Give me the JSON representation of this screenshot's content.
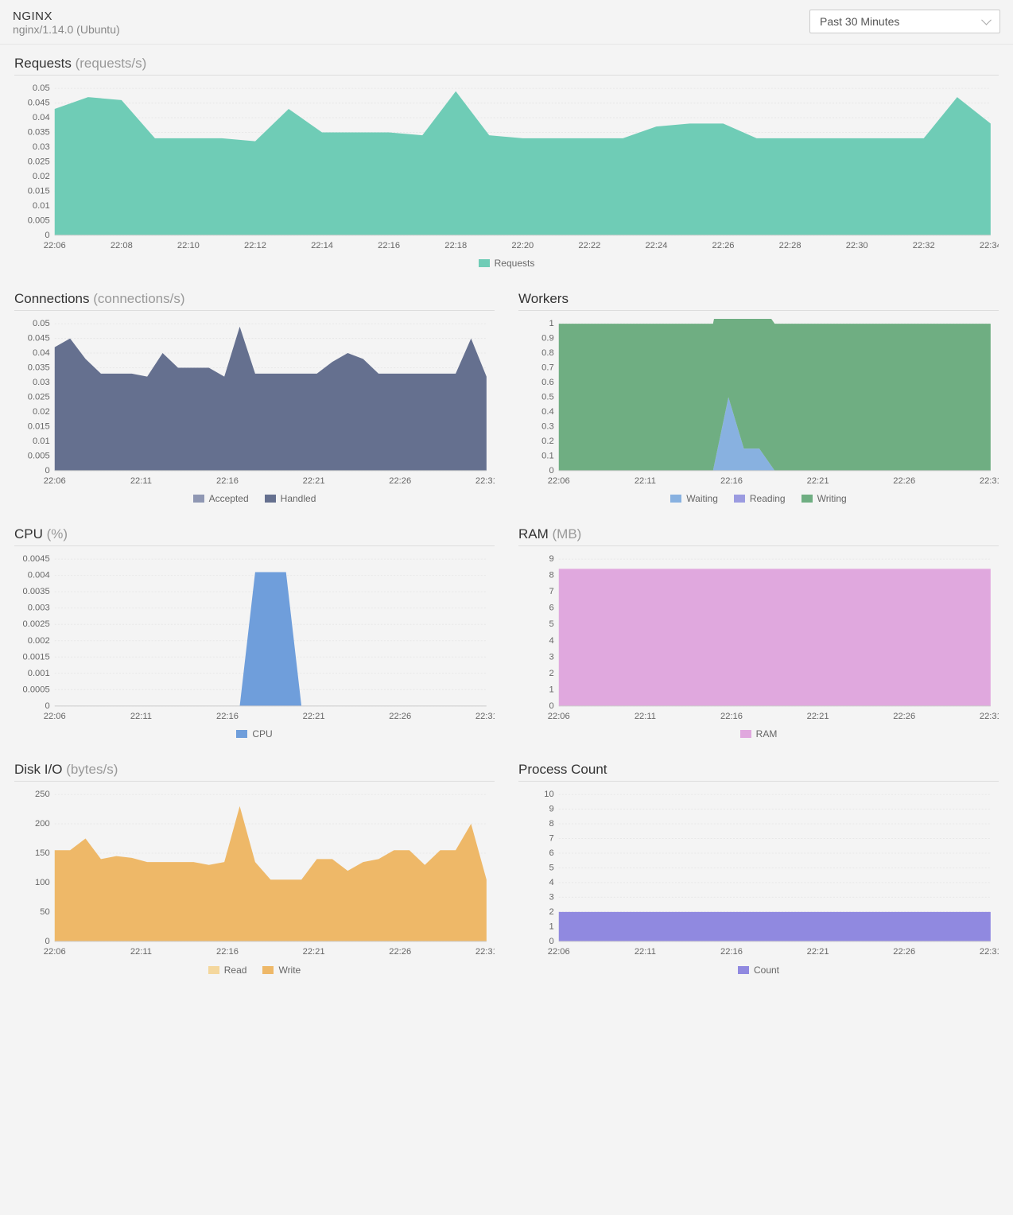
{
  "header": {
    "title": "NGINX",
    "subtitle": "nginx/1.14.0 (Ubuntu)",
    "time_range": "Past 30 Minutes"
  },
  "colors": {
    "requests_fill": "#6fccb6",
    "accepted_fill": "#8f97b3",
    "handled_fill": "#65708f",
    "waiting_fill": "#88b1e0",
    "reading_fill": "#9b9be0",
    "writing_fill": "#6fae82",
    "cpu_fill": "#6f9edb",
    "ram_fill": "#e0a8de",
    "read_fill": "#f4d79d",
    "write_fill": "#eeb868",
    "count_fill": "#9089e0",
    "grid": "#e8e8e8",
    "axis": "#cccccc",
    "text": "#666666"
  },
  "requests_chart": {
    "title": "Requests",
    "unit": "(requests/s)",
    "type": "area",
    "ylim": [
      0,
      0.05
    ],
    "ytick_step": 0.005,
    "xlabels": [
      "22:06",
      "22:08",
      "22:10",
      "22:12",
      "22:14",
      "22:16",
      "22:18",
      "22:20",
      "22:22",
      "22:24",
      "22:26",
      "22:28",
      "22:30",
      "22:32",
      "22:34"
    ],
    "series": [
      {
        "name": "Requests",
        "color_key": "requests_fill",
        "values": [
          0.043,
          0.047,
          0.046,
          0.033,
          0.033,
          0.033,
          0.032,
          0.043,
          0.035,
          0.035,
          0.035,
          0.034,
          0.049,
          0.034,
          0.033,
          0.033,
          0.033,
          0.033,
          0.037,
          0.038,
          0.038,
          0.033,
          0.033,
          0.033,
          0.033,
          0.033,
          0.033,
          0.047,
          0.038
        ]
      }
    ],
    "legend": [
      "Requests"
    ]
  },
  "connections_chart": {
    "title": "Connections",
    "unit": "(connections/s)",
    "type": "area-stacked",
    "ylim": [
      0,
      0.05
    ],
    "ytick_step": 0.005,
    "xlabels": [
      "22:06",
      "22:11",
      "22:16",
      "22:21",
      "22:26",
      "22:31"
    ],
    "npoints": 29,
    "series": [
      {
        "name": "Accepted",
        "color_key": "accepted_fill"
      },
      {
        "name": "Handled",
        "color_key": "handled_fill",
        "values": [
          0.042,
          0.045,
          0.038,
          0.033,
          0.033,
          0.033,
          0.032,
          0.04,
          0.035,
          0.035,
          0.035,
          0.032,
          0.049,
          0.033,
          0.033,
          0.033,
          0.033,
          0.033,
          0.037,
          0.04,
          0.038,
          0.033,
          0.033,
          0.033,
          0.033,
          0.033,
          0.033,
          0.045,
          0.032
        ]
      }
    ],
    "legend": [
      "Accepted",
      "Handled"
    ]
  },
  "workers_chart": {
    "title": "Workers",
    "unit": "",
    "type": "area-stacked",
    "ylim": [
      0,
      1
    ],
    "ytick_step": 0.1,
    "xlabels": [
      "22:06",
      "22:11",
      "22:16",
      "22:21",
      "22:26",
      "22:31"
    ],
    "npoints": 29,
    "series": [
      {
        "name": "Waiting",
        "color_key": "waiting_fill",
        "values": [
          0,
          0,
          0,
          0,
          0,
          0,
          0,
          0,
          0,
          0,
          0,
          0.5,
          0.15,
          0.15,
          0,
          0,
          0,
          0,
          0,
          0,
          0,
          0,
          0,
          0,
          0,
          0,
          0,
          0,
          0
        ]
      },
      {
        "name": "Reading",
        "color_key": "reading_fill",
        "values": [
          0,
          0,
          0,
          0,
          0,
          0,
          0,
          0,
          0,
          0,
          0,
          0,
          0,
          0,
          0,
          0,
          0,
          0,
          0,
          0,
          0,
          0,
          0,
          0,
          0,
          0,
          0,
          0,
          0
        ]
      },
      {
        "name": "Writing",
        "color_key": "writing_fill",
        "values": [
          1,
          1,
          1,
          1,
          1,
          1,
          1,
          1,
          1,
          1,
          1,
          1,
          1,
          1,
          1,
          1,
          1,
          1,
          1,
          1,
          1,
          1,
          1,
          1,
          1,
          1,
          1,
          1,
          1
        ]
      }
    ],
    "legend": [
      "Waiting",
      "Reading",
      "Writing"
    ]
  },
  "cpu_chart": {
    "title": "CPU",
    "unit": "(%)",
    "type": "area",
    "ylim": [
      0,
      0.0045
    ],
    "ytick_step": 0.0005,
    "xlabels": [
      "22:06",
      "22:11",
      "22:16",
      "22:21",
      "22:26",
      "22:31"
    ],
    "npoints": 29,
    "series": [
      {
        "name": "CPU",
        "color_key": "cpu_fill",
        "values": [
          0,
          0,
          0,
          0,
          0,
          0,
          0,
          0,
          0,
          0,
          0,
          0,
          0,
          0.0041,
          0.0041,
          0.0041,
          0,
          0,
          0,
          0,
          0,
          0,
          0,
          0,
          0,
          0,
          0,
          0,
          0
        ]
      }
    ],
    "legend": [
      "CPU"
    ]
  },
  "ram_chart": {
    "title": "RAM",
    "unit": "(MB)",
    "type": "area",
    "ylim": [
      0,
      9
    ],
    "ytick_step": 1,
    "xlabels": [
      "22:06",
      "22:11",
      "22:16",
      "22:21",
      "22:26",
      "22:31"
    ],
    "npoints": 29,
    "series": [
      {
        "name": "RAM",
        "color_key": "ram_fill",
        "values": [
          8.4,
          8.4,
          8.4,
          8.4,
          8.4,
          8.4,
          8.4,
          8.4,
          8.4,
          8.4,
          8.4,
          8.4,
          8.4,
          8.4,
          8.4,
          8.4,
          8.4,
          8.4,
          8.4,
          8.4,
          8.4,
          8.4,
          8.4,
          8.4,
          8.4,
          8.4,
          8.4,
          8.4,
          8.4
        ]
      }
    ],
    "legend": [
      "RAM"
    ]
  },
  "disk_chart": {
    "title": "Disk I/O",
    "unit": "(bytes/s)",
    "type": "area-stacked",
    "ylim": [
      0,
      250
    ],
    "ytick_step": 50,
    "xlabels": [
      "22:06",
      "22:11",
      "22:16",
      "22:21",
      "22:26",
      "22:31"
    ],
    "npoints": 29,
    "series": [
      {
        "name": "Read",
        "color_key": "read_fill",
        "values": [
          0,
          0,
          0,
          0,
          0,
          0,
          0,
          0,
          0,
          0,
          0,
          0,
          0,
          0,
          0,
          0,
          0,
          0,
          0,
          0,
          0,
          0,
          0,
          0,
          0,
          0,
          0,
          0,
          0
        ]
      },
      {
        "name": "Write",
        "color_key": "write_fill",
        "values": [
          155,
          155,
          175,
          140,
          145,
          142,
          135,
          135,
          135,
          135,
          130,
          135,
          230,
          135,
          105,
          105,
          105,
          140,
          140,
          120,
          135,
          140,
          155,
          155,
          130,
          155,
          155,
          200,
          105
        ]
      }
    ],
    "legend": [
      "Read",
      "Write"
    ]
  },
  "count_chart": {
    "title": "Process Count",
    "unit": "",
    "type": "area",
    "ylim": [
      0,
      10
    ],
    "ytick_step": 1,
    "xlabels": [
      "22:06",
      "22:11",
      "22:16",
      "22:21",
      "22:26",
      "22:31"
    ],
    "npoints": 29,
    "series": [
      {
        "name": "Count",
        "color_key": "count_fill",
        "values": [
          2,
          2,
          2,
          2,
          2,
          2,
          2,
          2,
          2,
          2,
          2,
          2,
          2,
          2,
          2,
          2,
          2,
          2,
          2,
          2,
          2,
          2,
          2,
          2,
          2,
          2,
          2,
          2,
          2
        ]
      }
    ],
    "legend": [
      "Count"
    ]
  }
}
